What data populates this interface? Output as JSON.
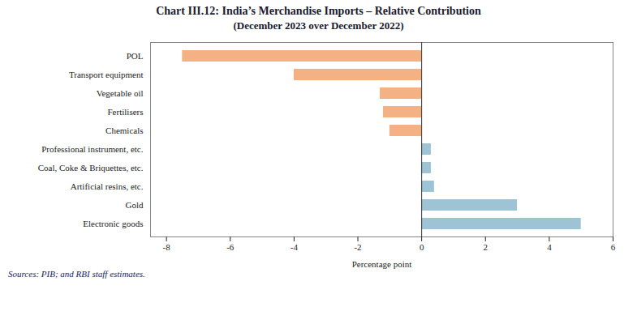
{
  "chart_data": {
    "type": "bar",
    "orientation": "horizontal",
    "title": "Chart III.12: India’s Merchandise Imports – Relative Contribution",
    "subtitle": "(December 2023 over December 2022)",
    "caption": "Sources: PIB; and RBI staff estimates.",
    "xlabel": "Percentage point",
    "categories": [
      "Electronic goods",
      "Gold",
      "Artificial resins, etc.",
      "Coal, Coke & Briquettes, etc.",
      "Professional instrument, etc.",
      "Chemicals",
      "Fertilisers",
      "Vegetable oil",
      "Transport equipment",
      "POL"
    ],
    "values": [
      5.0,
      3.0,
      0.4,
      0.3,
      0.3,
      -1.0,
      -1.2,
      -1.3,
      -4.0,
      -7.5
    ],
    "colors": [
      "#9dc3d4",
      "#9dc3d4",
      "#9dc3d4",
      "#9dc3d4",
      "#9dc3d4",
      "#f4b183",
      "#f4b183",
      "#f4b183",
      "#f4b183",
      "#f4b183"
    ],
    "xlim": [
      -8.5,
      6
    ],
    "xticks": [
      -8,
      -6,
      -4,
      -2,
      0,
      2,
      4,
      6
    ],
    "grid": false
  }
}
